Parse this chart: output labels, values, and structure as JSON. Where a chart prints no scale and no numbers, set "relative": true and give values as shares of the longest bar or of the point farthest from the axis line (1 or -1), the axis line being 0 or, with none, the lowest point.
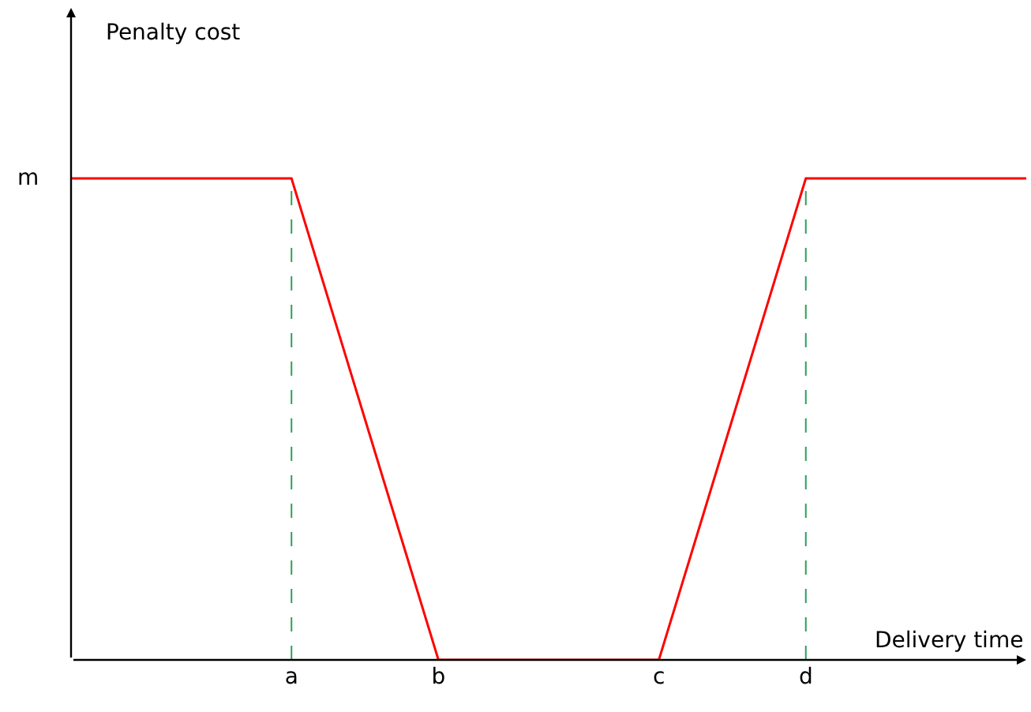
{
  "chart_data": {
    "type": "line",
    "relative": true,
    "xlabel": "Delivery time",
    "categories": [
      null,
      null,
      null,
      "a",
      null,
      "b",
      null,
      null,
      "c",
      null,
      "d",
      null,
      null,
      null
    ],
    "series": [
      {
        "color": "#ff0000",
        "values": [
          1,
          1,
          1,
          1,
          0.5,
          0,
          0,
          0,
          0,
          0.5,
          1,
          1,
          1,
          1
        ]
      }
    ],
    "annotations": [
      "m",
      "Penalty cost"
    ],
    "ref_lines": [
      {
        "axis": "x",
        "value": "a",
        "label": null,
        "color": "#2ca05a",
        "line_style": "dashed"
      },
      {
        "axis": "x",
        "value": "d",
        "label": null,
        "color": "#2ca05a",
        "line_style": "dashed"
      }
    ]
  }
}
